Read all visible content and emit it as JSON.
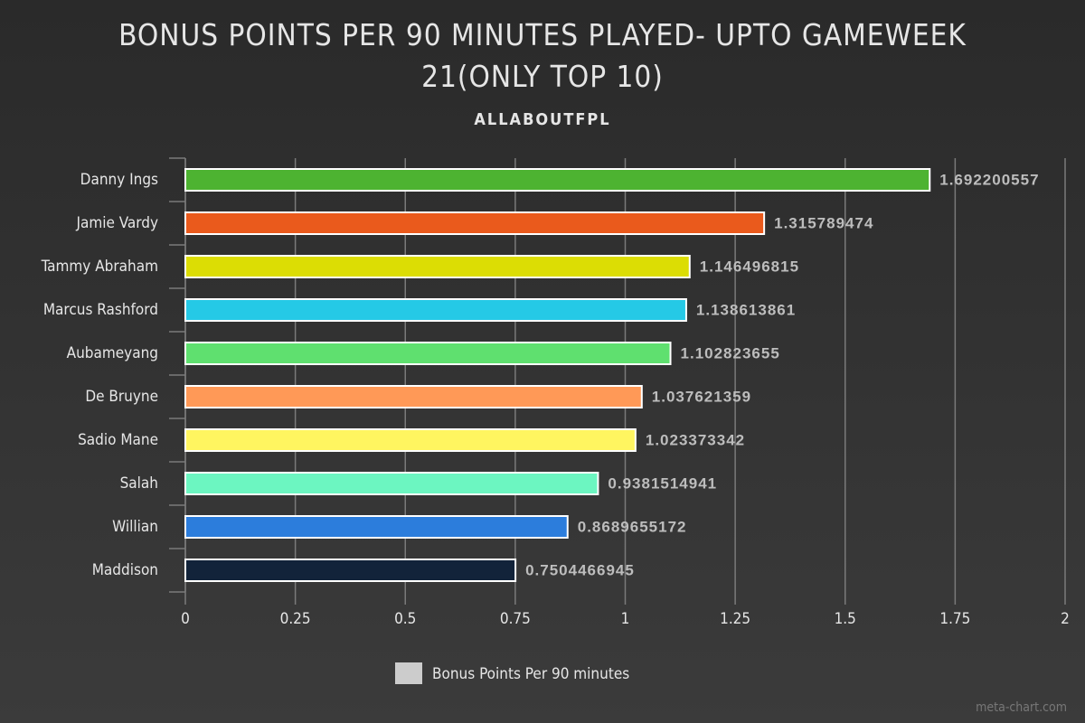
{
  "chart_data": {
    "type": "hbar",
    "title": "BONUS POINTS PER 90 MINUTES PLAYED- UPTO GAMEWEEK 21(ONLY TOP 10)",
    "subtitle": "ALLABOUTFPL",
    "categories": [
      "Danny Ings",
      "Jamie Vardy",
      "Tammy Abraham",
      "Marcus Rashford",
      "Aubameyang",
      "De Bruyne",
      "Sadio Mane",
      "Salah",
      "Willian",
      "Maddison"
    ],
    "series": [
      {
        "name": "Bonus Points Per 90 minutes",
        "color": "#cccccc",
        "values": [
          1.692200557,
          1.315789474,
          1.146496815,
          1.138613861,
          1.102823655,
          1.037621359,
          1.023373342,
          0.9381514941,
          0.8689655172,
          0.7504466945
        ]
      }
    ],
    "colors": [
      "#4db331",
      "#ea5a1c",
      "#dcdd04",
      "#25c9e6",
      "#5fe06f",
      "#ff9957",
      "#fff560",
      "#6cf6c1",
      "#2c7ddc",
      "#12233a"
    ],
    "xlim": [
      0,
      2
    ],
    "xticks": [
      0,
      0.25,
      0.5,
      0.75,
      1,
      1.25,
      1.5,
      1.75,
      2
    ],
    "grid": true,
    "legend": "bottom",
    "watermark": "meta-chart.com"
  }
}
